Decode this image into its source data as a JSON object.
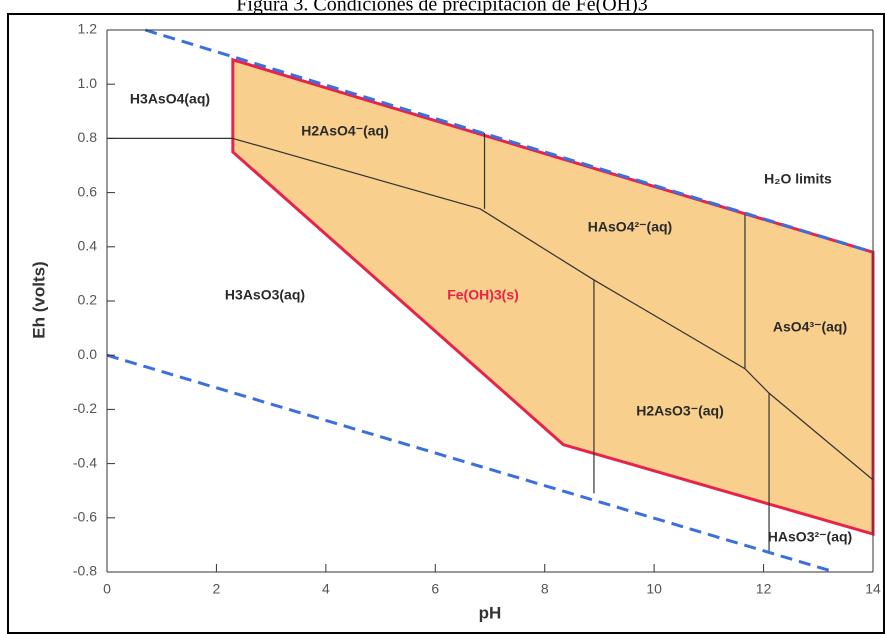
{
  "chart_data": {
    "type": "pourbaix",
    "title": "Figura 3. Condiciones de precipitación de Fe(OH)3",
    "x_label": "pH",
    "y_label": "Eh (volts)",
    "xlim": [
      0,
      14
    ],
    "ylim": [
      -0.8,
      1.2
    ],
    "xticks": [
      0,
      2,
      4,
      6,
      8,
      10,
      12,
      14
    ],
    "yticks": [
      1.2,
      {
        "value": 1.0,
        "label": "1.0"
      },
      0.8,
      0.6,
      0.4,
      0.2,
      {
        "value": 0.0,
        "label": "0.0"
      },
      -0.2,
      -0.4,
      -0.6,
      -0.8
    ],
    "region": {
      "name": "Fe(OH)3(s)",
      "fill": "#f8cf8c",
      "edge": "#e8234a",
      "x": [
        2.3,
        14,
        14,
        8.34,
        2.3,
        2.3
      ],
      "y": [
        1.09,
        0.38,
        -0.66,
        -0.33,
        0.75,
        1.09
      ]
    },
    "water_limits": {
      "name": "H₂O limits",
      "color": "#3b6fe0",
      "lines": [
        {
          "x": [
            0.7,
            14
          ],
          "y": [
            1.2,
            0.38
          ]
        },
        {
          "x": [
            0,
            13.3
          ],
          "y": [
            0,
            -0.8
          ]
        }
      ]
    },
    "boundaries": [
      {
        "x": [
          0,
          2.3
        ],
        "y": [
          0.8,
          0.8
        ]
      },
      {
        "x": [
          2.3,
          6.82,
          8.88,
          11.66,
          12.1,
          14
        ],
        "y": [
          0.8,
          0.54,
          0.28,
          -0.05,
          -0.14,
          -0.46
        ]
      },
      {
        "x": [
          6.9,
          6.9
        ],
        "y": [
          0.54,
          0.82
        ]
      },
      {
        "x": [
          8.9,
          8.9
        ],
        "y": [
          0.28,
          -0.51
        ]
      },
      {
        "x": [
          11.66,
          11.66
        ],
        "y": [
          -0.05,
          0.52
        ]
      },
      {
        "x": [
          12.1,
          12.1
        ],
        "y": [
          -0.14,
          -0.73
        ]
      }
    ],
    "species": [
      "H3AsO4(aq)",
      "H2AsO4⁻(aq)",
      "HAsO4²⁻(aq)",
      "H3AsO3(aq)",
      "AsO4³⁻(aq)",
      "H2AsO3⁻(aq)",
      "HAsO3²⁻(aq)"
    ]
  }
}
